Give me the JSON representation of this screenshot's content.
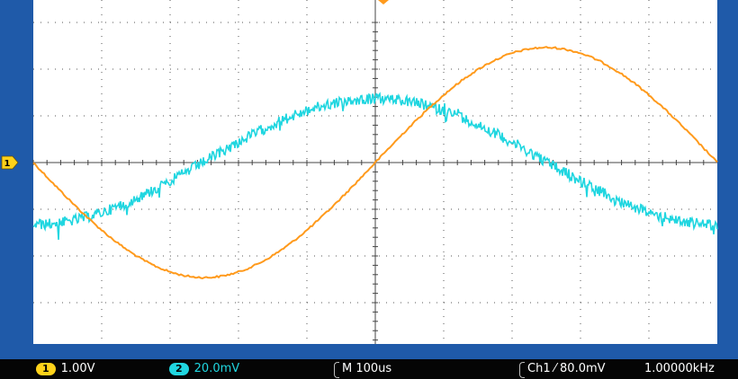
{
  "colors": {
    "ch1": "#ff9a1c",
    "ch2": "#20d6e0",
    "graticule_bg": "#ffffff",
    "frame": "#1f5aa9",
    "bar_bg": "#050505"
  },
  "markers": {
    "ch1_ground": "1"
  },
  "status": {
    "ch1_badge": "1",
    "ch1_scale": "1.00V",
    "ch2_badge": "2",
    "ch2_scale": "20.0mV",
    "timebase": "M 100us",
    "trigger": "Ch1 ⁄ 80.0mV",
    "frequency": "1.00000kHz"
  },
  "icons": [
    "ground-marker-icon",
    "trigger-position-icon"
  ]
}
